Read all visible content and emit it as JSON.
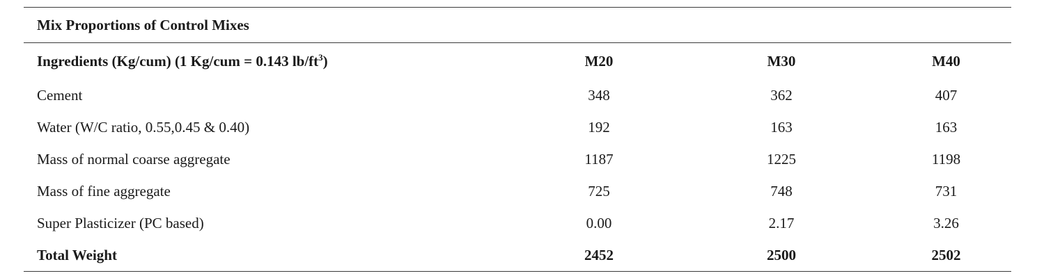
{
  "table": {
    "caption": "Mix Proportions of Control Mixes",
    "header": {
      "ingredient_label": "Ingredients (Kg/cum) (1 Kg/cum = 0.143 lb/ft",
      "ingredient_label_sup": "3",
      "ingredient_label_end": ")",
      "columns": [
        "M20",
        "M30",
        "M40"
      ]
    },
    "rows": [
      {
        "label": "Cement",
        "values": [
          "348",
          "362",
          "407"
        ]
      },
      {
        "label": "Water (W/C ratio, 0.55,0.45 & 0.40)",
        "values": [
          "192",
          "163",
          "163"
        ]
      },
      {
        "label": "Mass of normal coarse aggregate",
        "values": [
          "1187",
          "1225",
          "1198"
        ]
      },
      {
        "label": "Mass of fine aggregate",
        "values": [
          "725",
          "748",
          "731"
        ]
      },
      {
        "label": "Super Plasticizer (PC based)",
        "values": [
          "0.00",
          "2.17",
          "3.26"
        ]
      }
    ],
    "total": {
      "label": "Total Weight",
      "values": [
        "2452",
        "2500",
        "2502"
      ]
    }
  }
}
